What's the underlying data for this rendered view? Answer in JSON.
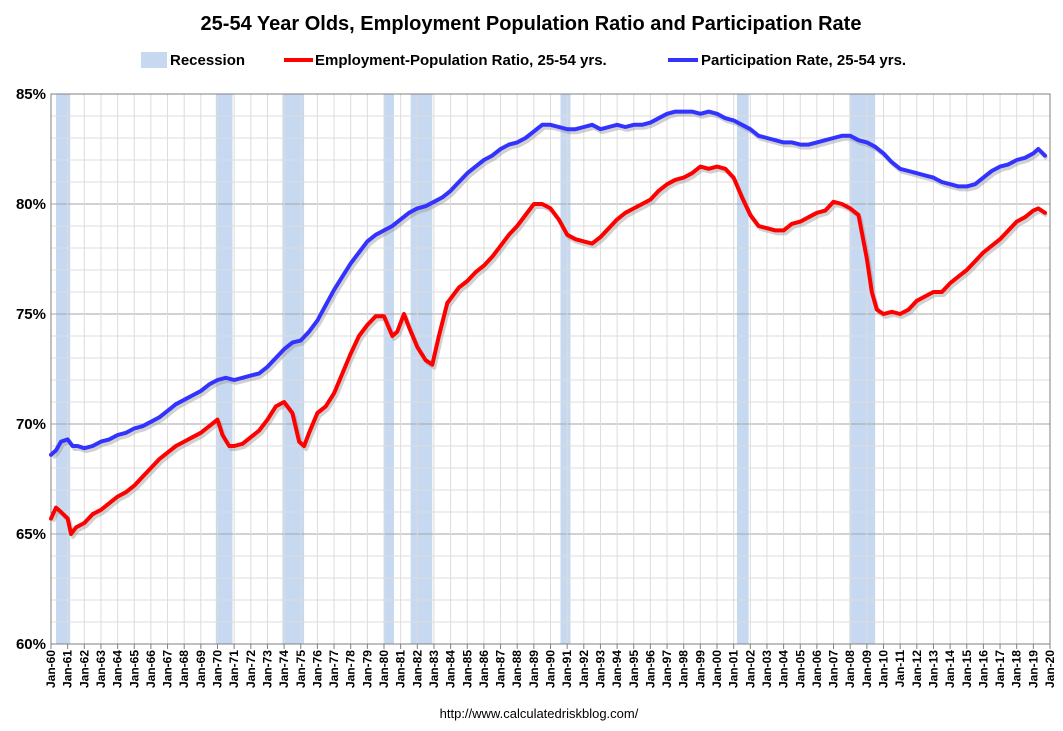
{
  "chart_data": {
    "type": "line",
    "title": "25-54 Year Olds, Employment Population Ratio and Participation Rate",
    "source": "http://www.calculatedriskblog.com/",
    "xlabel": "",
    "ylabel": "",
    "ylim": [
      60,
      85
    ],
    "grid": true,
    "legend_position": "top",
    "y_ticks": [
      {
        "value": 60,
        "label": "60%"
      },
      {
        "value": 65,
        "label": "65%"
      },
      {
        "value": 70,
        "label": "70%"
      },
      {
        "value": 75,
        "label": "75%"
      },
      {
        "value": 80,
        "label": "80%"
      },
      {
        "value": 85,
        "label": "85%"
      }
    ],
    "x_range": [
      1960,
      2020
    ],
    "x_ticks": [
      "Jan-60",
      "Jan-61",
      "Jan-62",
      "Jan-63",
      "Jan-64",
      "Jan-65",
      "Jan-66",
      "Jan-67",
      "Jan-68",
      "Jan-69",
      "Jan-70",
      "Jan-71",
      "Jan-72",
      "Jan-73",
      "Jan-74",
      "Jan-75",
      "Jan-76",
      "Jan-77",
      "Jan-78",
      "Jan-79",
      "Jan-80",
      "Jan-81",
      "Jan-82",
      "Jan-83",
      "Jan-84",
      "Jan-85",
      "Jan-86",
      "Jan-87",
      "Jan-88",
      "Jan-89",
      "Jan-90",
      "Jan-91",
      "Jan-92",
      "Jan-93",
      "Jan-94",
      "Jan-95",
      "Jan-96",
      "Jan-97",
      "Jan-98",
      "Jan-99",
      "Jan-00",
      "Jan-01",
      "Jan-02",
      "Jan-03",
      "Jan-04",
      "Jan-05",
      "Jan-06",
      "Jan-07",
      "Jan-08",
      "Jan-09",
      "Jan-10",
      "Jan-11",
      "Jan-12",
      "Jan-13",
      "Jan-14",
      "Jan-15",
      "Jan-16",
      "Jan-17",
      "Jan-18",
      "Jan-19",
      "Jan-20"
    ],
    "recession_label": "Recession",
    "recessions": [
      [
        1960.3,
        1961.15
      ],
      [
        1969.9,
        1970.9
      ],
      [
        1973.9,
        1975.2
      ],
      [
        1980.0,
        1980.6
      ],
      [
        1981.6,
        1982.9
      ],
      [
        1990.6,
        1991.2
      ],
      [
        2001.2,
        2001.9
      ],
      [
        2007.95,
        2009.5
      ]
    ],
    "series": [
      {
        "name": "Employment-Population Ratio, 25-54 yrs.",
        "color": "#ff0000",
        "x": [
          1960.0,
          1960.3,
          1960.6,
          1961.0,
          1961.2,
          1961.5,
          1962.0,
          1962.5,
          1963.0,
          1963.5,
          1964.0,
          1964.5,
          1965.0,
          1965.5,
          1966.0,
          1966.5,
          1967.0,
          1967.5,
          1968.0,
          1968.5,
          1969.0,
          1969.5,
          1970.0,
          1970.3,
          1970.7,
          1971.0,
          1971.5,
          1972.0,
          1972.5,
          1973.0,
          1973.5,
          1974.0,
          1974.5,
          1974.9,
          1975.2,
          1975.5,
          1976.0,
          1976.5,
          1977.0,
          1977.5,
          1978.0,
          1978.5,
          1979.0,
          1979.5,
          1980.0,
          1980.5,
          1980.8,
          1981.2,
          1981.5,
          1982.0,
          1982.5,
          1982.9,
          1983.3,
          1983.8,
          1984.5,
          1985.0,
          1985.5,
          1986.0,
          1986.5,
          1987.0,
          1987.5,
          1988.0,
          1988.5,
          1989.0,
          1989.5,
          1990.0,
          1990.5,
          1991.0,
          1991.5,
          1992.0,
          1992.5,
          1993.0,
          1993.5,
          1994.0,
          1994.5,
          1995.0,
          1995.5,
          1996.0,
          1996.5,
          1997.0,
          1997.5,
          1998.0,
          1998.5,
          1999.0,
          1999.5,
          2000.0,
          2000.5,
          2001.0,
          2001.5,
          2002.0,
          2002.5,
          2003.0,
          2003.5,
          2004.0,
          2004.5,
          2005.0,
          2005.5,
          2006.0,
          2006.5,
          2007.0,
          2007.5,
          2008.0,
          2008.5,
          2009.0,
          2009.3,
          2009.6,
          2010.0,
          2010.5,
          2011.0,
          2011.5,
          2012.0,
          2012.5,
          2013.0,
          2013.5,
          2014.0,
          2014.5,
          2015.0,
          2015.5,
          2016.0,
          2016.5,
          2017.0,
          2017.5,
          2018.0,
          2018.5,
          2019.0,
          2019.3,
          2019.7
        ],
        "values": [
          65.7,
          66.2,
          66.0,
          65.7,
          65.0,
          65.3,
          65.5,
          65.9,
          66.1,
          66.4,
          66.7,
          66.9,
          67.2,
          67.6,
          68.0,
          68.4,
          68.7,
          69.0,
          69.2,
          69.4,
          69.6,
          69.9,
          70.2,
          69.5,
          69.0,
          69.0,
          69.1,
          69.4,
          69.7,
          70.2,
          70.8,
          71.0,
          70.5,
          69.2,
          69.0,
          69.6,
          70.5,
          70.8,
          71.4,
          72.3,
          73.2,
          74.0,
          74.5,
          74.9,
          74.9,
          74.0,
          74.2,
          75.0,
          74.4,
          73.5,
          72.9,
          72.7,
          74.0,
          75.5,
          76.2,
          76.5,
          76.9,
          77.2,
          77.6,
          78.1,
          78.6,
          79.0,
          79.5,
          80.0,
          80.0,
          79.8,
          79.3,
          78.6,
          78.4,
          78.3,
          78.2,
          78.5,
          78.9,
          79.3,
          79.6,
          79.8,
          80.0,
          80.2,
          80.6,
          80.9,
          81.1,
          81.2,
          81.4,
          81.7,
          81.6,
          81.7,
          81.6,
          81.2,
          80.3,
          79.5,
          79.0,
          78.9,
          78.8,
          78.8,
          79.1,
          79.2,
          79.4,
          79.6,
          79.7,
          80.1,
          80.0,
          79.8,
          79.5,
          77.5,
          76.0,
          75.2,
          75.0,
          75.1,
          75.0,
          75.2,
          75.6,
          75.8,
          76.0,
          76.0,
          76.4,
          76.7,
          77.0,
          77.4,
          77.8,
          78.1,
          78.4,
          78.8,
          79.2,
          79.4,
          79.7,
          79.8,
          79.6
        ]
      },
      {
        "name": "Participation Rate, 25-54 yrs.",
        "color": "#3333ff",
        "x": [
          1960.0,
          1960.3,
          1960.6,
          1961.0,
          1961.3,
          1961.6,
          1962.0,
          1962.5,
          1963.0,
          1963.5,
          1964.0,
          1964.5,
          1965.0,
          1965.5,
          1966.0,
          1966.5,
          1967.0,
          1967.5,
          1968.0,
          1968.5,
          1969.0,
          1969.5,
          1970.0,
          1970.5,
          1971.0,
          1971.5,
          1972.0,
          1972.5,
          1973.0,
          1973.5,
          1974.0,
          1974.5,
          1975.0,
          1975.5,
          1976.0,
          1976.5,
          1977.0,
          1977.5,
          1978.0,
          1978.5,
          1979.0,
          1979.5,
          1980.0,
          1980.5,
          1981.0,
          1981.5,
          1982.0,
          1982.5,
          1983.0,
          1983.5,
          1984.0,
          1984.5,
          1985.0,
          1985.5,
          1986.0,
          1986.5,
          1987.0,
          1987.5,
          1988.0,
          1988.5,
          1989.0,
          1989.5,
          1990.0,
          1990.5,
          1991.0,
          1991.5,
          1992.0,
          1992.5,
          1993.0,
          1993.5,
          1994.0,
          1994.5,
          1995.0,
          1995.5,
          1996.0,
          1996.5,
          1997.0,
          1997.5,
          1998.0,
          1998.5,
          1999.0,
          1999.5,
          2000.0,
          2000.5,
          2001.0,
          2001.5,
          2002.0,
          2002.5,
          2003.0,
          2003.5,
          2004.0,
          2004.5,
          2005.0,
          2005.5,
          2006.0,
          2006.5,
          2007.0,
          2007.5,
          2008.0,
          2008.5,
          2009.0,
          2009.5,
          2010.0,
          2010.5,
          2011.0,
          2011.5,
          2012.0,
          2012.5,
          2013.0,
          2013.5,
          2014.0,
          2014.5,
          2015.0,
          2015.5,
          2016.0,
          2016.5,
          2017.0,
          2017.5,
          2018.0,
          2018.5,
          2019.0,
          2019.3,
          2019.7
        ],
        "values": [
          68.6,
          68.8,
          69.2,
          69.3,
          69.0,
          69.0,
          68.9,
          69.0,
          69.2,
          69.3,
          69.5,
          69.6,
          69.8,
          69.9,
          70.1,
          70.3,
          70.6,
          70.9,
          71.1,
          71.3,
          71.5,
          71.8,
          72.0,
          72.1,
          72.0,
          72.1,
          72.2,
          72.3,
          72.6,
          73.0,
          73.4,
          73.7,
          73.8,
          74.2,
          74.7,
          75.4,
          76.1,
          76.7,
          77.3,
          77.8,
          78.3,
          78.6,
          78.8,
          79.0,
          79.3,
          79.6,
          79.8,
          79.9,
          80.1,
          80.3,
          80.6,
          81.0,
          81.4,
          81.7,
          82.0,
          82.2,
          82.5,
          82.7,
          82.8,
          83.0,
          83.3,
          83.6,
          83.6,
          83.5,
          83.4,
          83.4,
          83.5,
          83.6,
          83.4,
          83.5,
          83.6,
          83.5,
          83.6,
          83.6,
          83.7,
          83.9,
          84.1,
          84.2,
          84.2,
          84.2,
          84.1,
          84.2,
          84.1,
          83.9,
          83.8,
          83.6,
          83.4,
          83.1,
          83.0,
          82.9,
          82.8,
          82.8,
          82.7,
          82.7,
          82.8,
          82.9,
          83.0,
          83.1,
          83.1,
          82.9,
          82.8,
          82.6,
          82.3,
          81.9,
          81.6,
          81.5,
          81.4,
          81.3,
          81.2,
          81.0,
          80.9,
          80.8,
          80.8,
          80.9,
          81.2,
          81.5,
          81.7,
          81.8,
          82.0,
          82.1,
          82.3,
          82.5,
          82.2
        ]
      }
    ]
  }
}
